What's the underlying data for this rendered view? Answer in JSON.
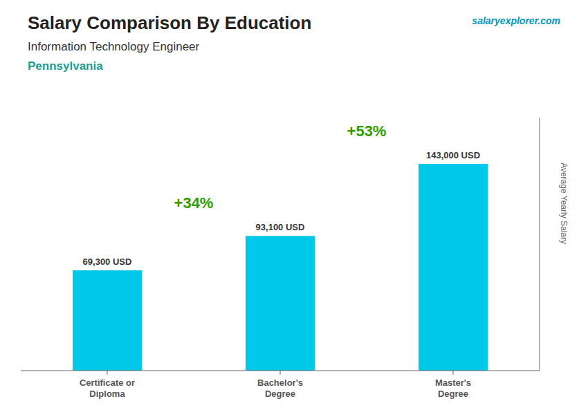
{
  "chart_data": {
    "type": "bar",
    "title": "Salary Comparison By Education",
    "subtitle": "Information Technology Engineer",
    "annotations": [
      "Pennsylvania",
      "+34%",
      "+53%",
      "salaryexplorer.com"
    ],
    "ylabel": "Average Yearly Salary",
    "categories": [
      "Certificate or\nDiploma",
      "Bachelor's\nDegree",
      "Master's\nDegree"
    ],
    "values": [
      69300,
      93100,
      143000
    ],
    "value_labels": [
      "69,300 USD",
      "93,100 USD",
      "143,000 USD"
    ],
    "data_labels": true,
    "color": "#00c8e8",
    "ylim": [
      0,
      175000
    ],
    "tick_labels": "x",
    "grid": false
  }
}
